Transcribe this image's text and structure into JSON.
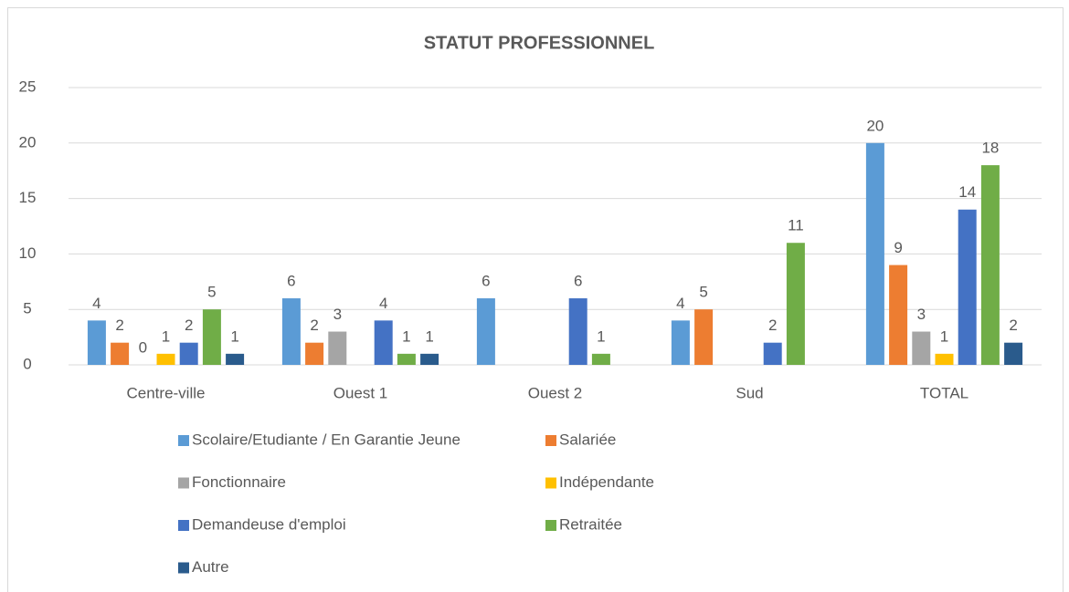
{
  "chart_data": {
    "type": "bar",
    "title": "STATUT PROFESSIONNEL",
    "categories": [
      "Centre-ville",
      "Ouest 1",
      "Ouest 2",
      "Sud",
      "TOTAL"
    ],
    "series": [
      {
        "name": "Scolaire/Etudiante / En Garantie Jeune",
        "color": "#5b9bd5",
        "values": [
          4,
          6,
          6,
          4,
          20
        ]
      },
      {
        "name": "Salariée",
        "color": "#ed7d31",
        "values": [
          2,
          2,
          null,
          5,
          9
        ]
      },
      {
        "name": "Fonctionnaire",
        "color": "#a5a5a5",
        "values": [
          0,
          3,
          null,
          null,
          3
        ]
      },
      {
        "name": "Indépendante",
        "color": "#ffc000",
        "values": [
          1,
          null,
          null,
          null,
          1
        ]
      },
      {
        "name": "Demandeuse d'emploi",
        "color": "#4472c4",
        "values": [
          2,
          4,
          6,
          2,
          14
        ]
      },
      {
        "name": "Retraitée",
        "color": "#70ad47",
        "values": [
          5,
          1,
          1,
          11,
          18
        ]
      },
      {
        "name": "Autre",
        "color": "#2a5b8c",
        "values": [
          1,
          1,
          null,
          null,
          2
        ]
      }
    ],
    "ylim": [
      0,
      25
    ],
    "yticks": [
      0,
      5,
      10,
      15,
      20,
      25
    ],
    "grid": true,
    "legend": "bottom"
  }
}
